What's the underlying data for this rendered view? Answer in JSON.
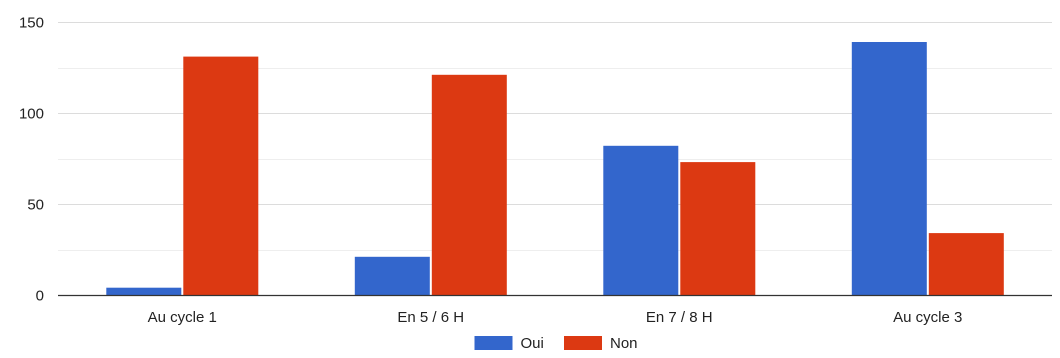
{
  "chart_data": {
    "type": "bar",
    "categories": [
      "Au cycle 1",
      "En 5 / 6 H",
      "En 7 / 8 H",
      "Au cycle 3"
    ],
    "series": [
      {
        "name": "Oui",
        "color": "#3366cc",
        "values": [
          4,
          21,
          82,
          139
        ]
      },
      {
        "name": "Non",
        "color": "#dc3912",
        "values": [
          131,
          121,
          73,
          34
        ]
      }
    ],
    "ylim": [
      0,
      150
    ],
    "yticks": [
      0,
      50,
      100,
      150
    ],
    "grid": true,
    "legend_position": "bottom"
  }
}
